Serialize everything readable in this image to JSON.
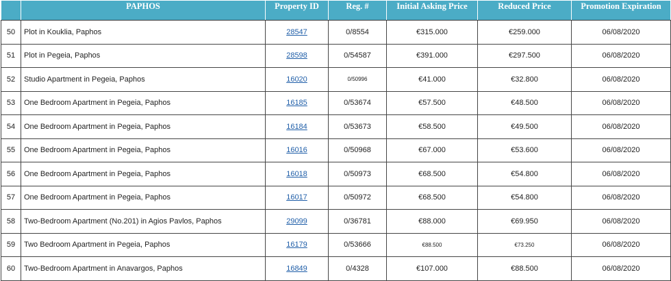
{
  "table": {
    "headers": {
      "num": "",
      "region": "PAPHOS",
      "property_id": "Property ID",
      "reg": "Reg. #",
      "initial_price": "Initial Asking Price",
      "reduced_price": "Reduced  Price",
      "expiration": "Promotion Expiration"
    },
    "rows": [
      {
        "num": "50",
        "desc": "Plot in Kouklia, Paphos",
        "pid": "28547",
        "reg": "0/8554",
        "initial": "€315.000",
        "reduced": "€259.000",
        "exp": "06/08/2020"
      },
      {
        "num": "51",
        "desc": "Plot in Pegeia, Paphos",
        "pid": "28598",
        "reg": "0/54587",
        "initial": "€391.000",
        "reduced": "€297.500",
        "exp": "06/08/2020"
      },
      {
        "num": "52",
        "desc": "Studio Apartment in Pegeia, Paphos",
        "pid": "16020",
        "reg": "0/50996",
        "initial": "€41.000",
        "reduced": "€32.800",
        "exp": "06/08/2020"
      },
      {
        "num": "53",
        "desc": "One Bedroom Apartment in Pegeia, Paphos",
        "pid": "16185",
        "reg": "0/53674",
        "initial": "€57.500",
        "reduced": "€48.500",
        "exp": "06/08/2020"
      },
      {
        "num": "54",
        "desc": "One Bedroom Apartment in Pegeia, Paphos",
        "pid": "16184",
        "reg": "0/53673",
        "initial": "€58.500",
        "reduced": "€49.500",
        "exp": "06/08/2020"
      },
      {
        "num": "55",
        "desc": "One Bedroom Apartment in Pegeia, Paphos",
        "pid": "16016",
        "reg": "0/50968",
        "initial": "€67.000",
        "reduced": "€53.600",
        "exp": "06/08/2020"
      },
      {
        "num": "56",
        "desc": "One Bedroom Apartment in Pegeia, Paphos",
        "pid": "16018",
        "reg": "0/50973",
        "initial": "€68.500",
        "reduced": "€54.800",
        "exp": "06/08/2020"
      },
      {
        "num": "57",
        "desc": "One Bedroom Apartment in Pegeia, Paphos",
        "pid": "16017",
        "reg": "0/50972",
        "initial": "€68.500",
        "reduced": "€54.800",
        "exp": "06/08/2020"
      },
      {
        "num": "58",
        "desc": "Two-Bedroom Apartment (No.201) in Agios Pavlos, Paphos",
        "pid": "29099",
        "reg": "0/36781",
        "initial": "€88.000",
        "reduced": "€69.950",
        "exp": "06/08/2020"
      },
      {
        "num": "59",
        "desc": "Two Bedroom Apartment in Pegeia, Paphos",
        "pid": "16179",
        "reg": "0/53666",
        "initial": "€88.500",
        "reduced": "€73.250",
        "exp": "06/08/2020"
      },
      {
        "num": "60",
        "desc": "Two-Bedroom Apartment in Anavargos, Paphos",
        "pid": "16849",
        "reg": "0/4328",
        "initial": "€107.000",
        "reduced": "€88.500",
        "exp": "06/08/2020"
      }
    ]
  },
  "colors": {
    "header_bg": "#4bacc6",
    "header_text": "#ffffff",
    "link": "#1f5ea8"
  }
}
